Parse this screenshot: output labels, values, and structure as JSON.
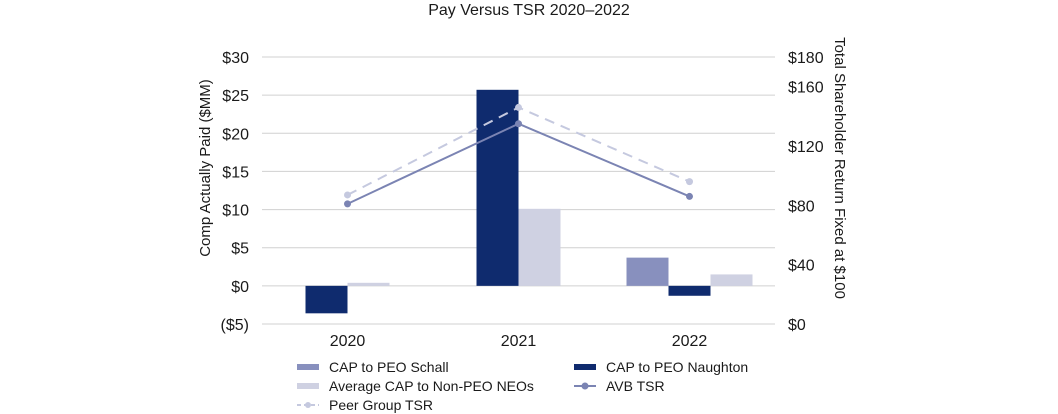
{
  "chart_data": {
    "type": "bar",
    "title": "Pay Versus TSR 2020–2022",
    "categories": [
      "2020",
      "2021",
      "2022"
    ],
    "ylabel": "Comp Actually Paid ($MM)",
    "y2label": "Total Shareholder Return Fixed at $100",
    "ylim": [
      -5,
      30
    ],
    "y2lim": [
      0,
      180
    ],
    "yticks": [
      30,
      25,
      20,
      15,
      10,
      5,
      0,
      -5
    ],
    "ytick_labels": [
      "$30",
      "$25",
      "$20",
      "$15",
      "$10",
      "$5",
      "$0",
      "($5)"
    ],
    "y2ticks": [
      180,
      160,
      120,
      80,
      40,
      0
    ],
    "y2tick_labels": [
      "$180",
      "$160",
      "$120",
      "$80",
      "$40",
      "$0"
    ],
    "bar_series": [
      {
        "name": "CAP to PEO Schall",
        "color": "#8890be",
        "values": [
          null,
          null,
          3.7
        ]
      },
      {
        "name": "CAP to PEO Naughton",
        "color": "#0f2b6e",
        "values": [
          -3.6,
          25.7,
          -1.3
        ]
      },
      {
        "name": "Average CAP to Non-PEO NEOs",
        "color": "#cfd1e2",
        "values": [
          0.4,
          10.1,
          1.5
        ]
      }
    ],
    "line_series": [
      {
        "name": "AVB TSR",
        "color": "#7b84b3",
        "dashed": false,
        "values": [
          81,
          135,
          86
        ]
      },
      {
        "name": "Peer Group TSR",
        "color": "#c5c9df",
        "dashed": true,
        "values": [
          87,
          146,
          96
        ]
      }
    ],
    "legend": {
      "col1": [
        "CAP to PEO Schall",
        "Average CAP to Non-PEO NEOs",
        "Peer Group TSR"
      ],
      "col2": [
        "CAP to PEO Naughton",
        "AVB TSR"
      ]
    }
  }
}
